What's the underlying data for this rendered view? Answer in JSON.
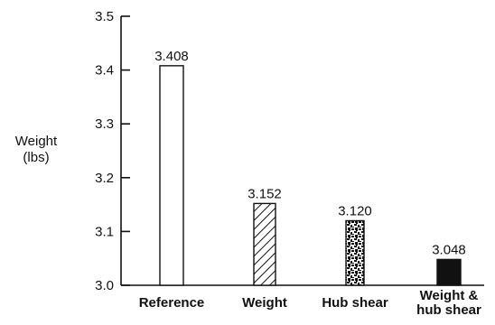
{
  "chart_data": {
    "type": "bar",
    "categories": [
      "Reference",
      "Weight",
      "Hub shear",
      "Weight &\nhub shear"
    ],
    "values": [
      3.408,
      3.152,
      3.12,
      3.048
    ],
    "value_labels": [
      "3.408",
      "3.152",
      "3.120",
      "3.048"
    ],
    "patterns": [
      "none",
      "diagonal-hatch",
      "speckled",
      "solid"
    ],
    "title": "",
    "xlabel": "",
    "ylabel_lines": [
      "Weight",
      "(lbs)"
    ],
    "ylim": [
      3.0,
      3.5
    ],
    "yticks": [
      3.0,
      3.1,
      3.2,
      3.3,
      3.4,
      3.5
    ],
    "ytick_labels": [
      "3.0",
      "3.1",
      "3.2",
      "3.3",
      "3.4",
      "3.5"
    ],
    "grid": false,
    "colors": {
      "ink": "#111111",
      "background": "#ffffff"
    }
  }
}
